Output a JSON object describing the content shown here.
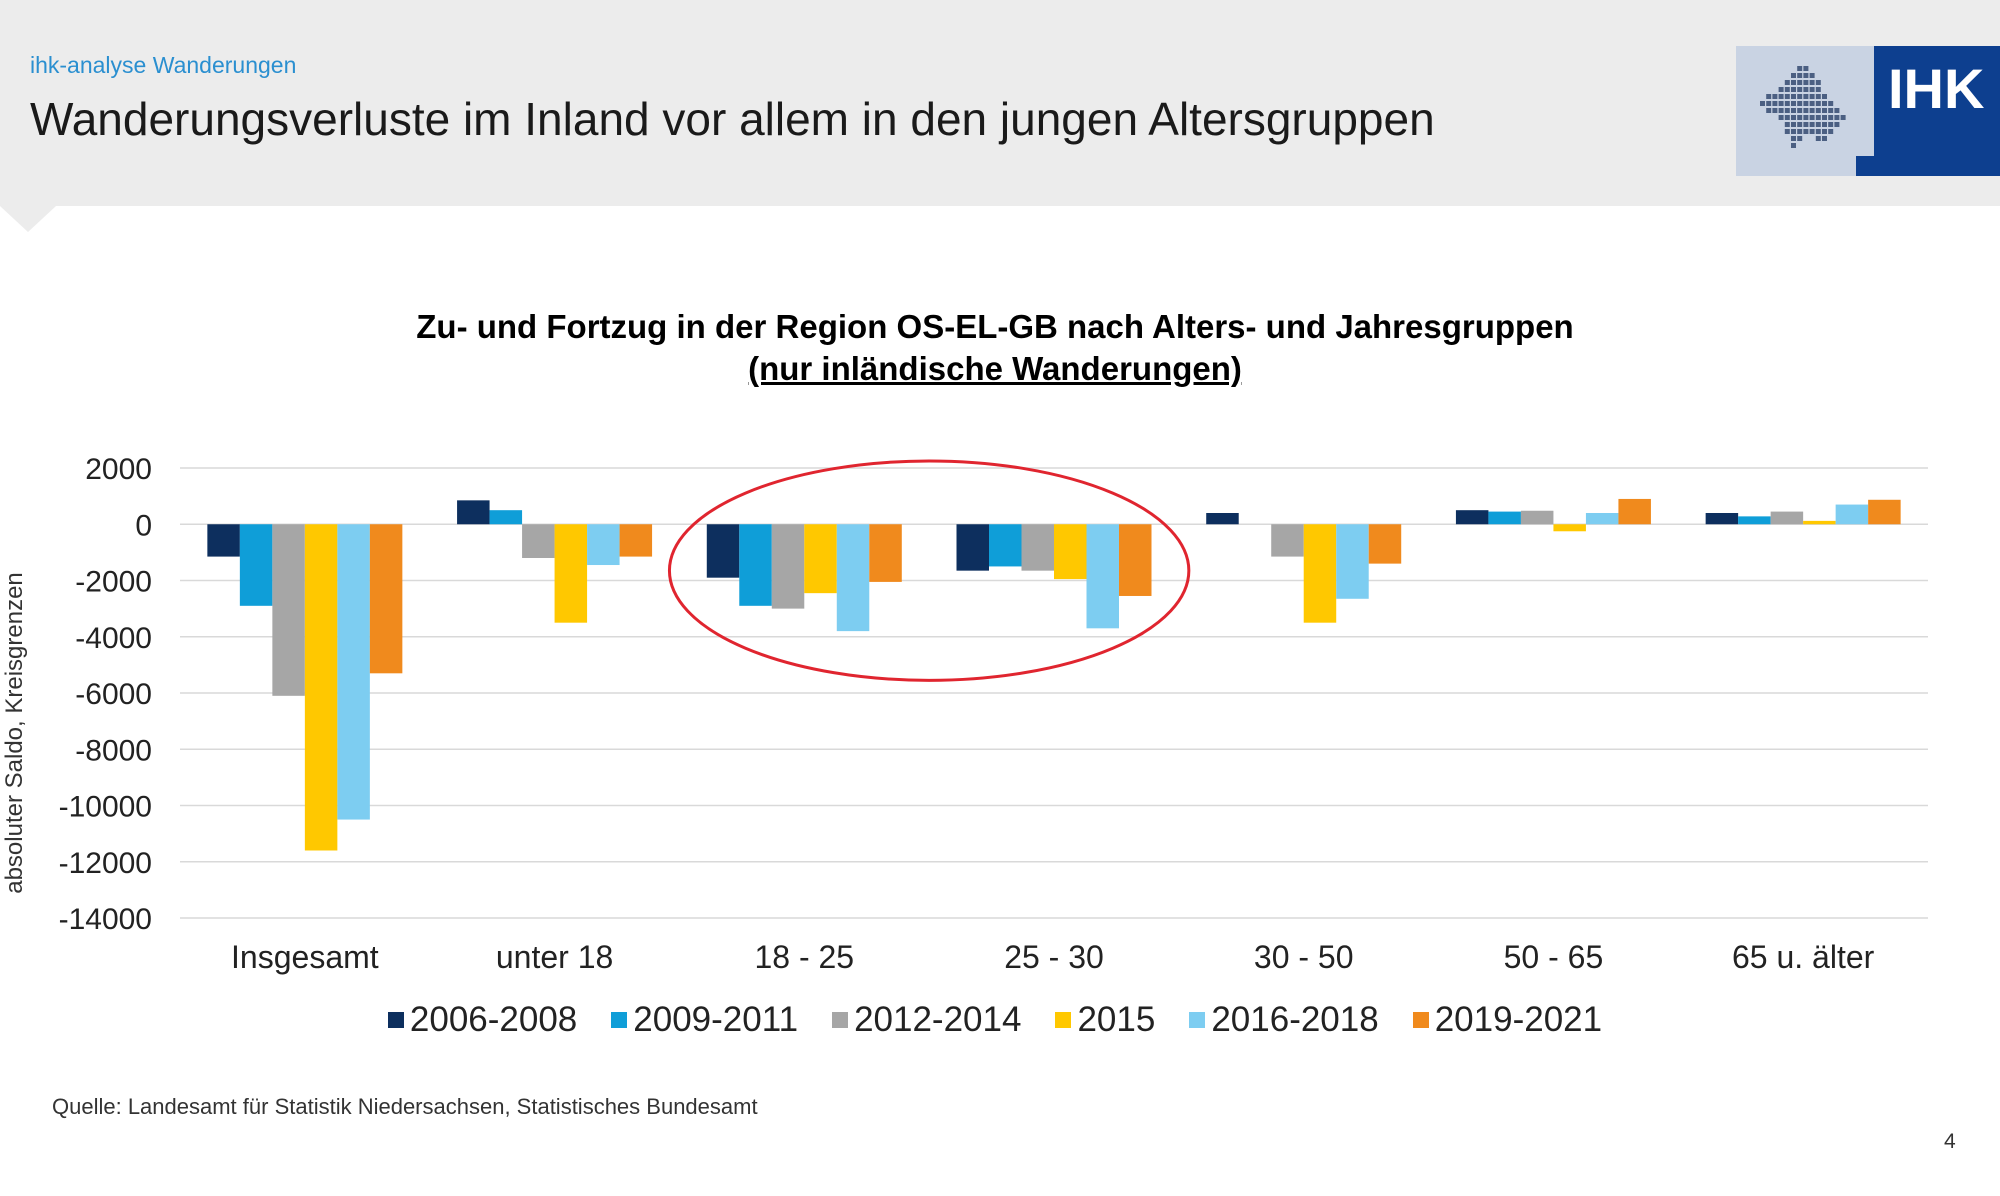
{
  "header": {
    "kicker": "ihk-analyse Wanderungen",
    "title": "Wanderungsverluste im Inland vor allem in den jungen Altersgruppen",
    "logo_text": "IHK"
  },
  "chart_data": {
    "type": "bar",
    "title": "Zu- und Fortzug in der Region OS-EL-GB nach Alters- und Jahresgruppen",
    "subtitle": "(nur inländische Wanderungen)",
    "ylabel": "absoluter Saldo, Kreisgrenzen",
    "ylim": [
      -14000,
      2000
    ],
    "yticks": [
      2000,
      0,
      -2000,
      -4000,
      -6000,
      -8000,
      -10000,
      -12000,
      -14000
    ],
    "grid": true,
    "legend_position": "bottom",
    "categories": [
      "Insgesamt",
      "unter 18",
      "18 - 25",
      "25 - 30",
      "30 - 50",
      "50 - 65",
      "65 u. älter"
    ],
    "series": [
      {
        "name": "2006-2008",
        "color": "#0d2f5e",
        "values": [
          -1150,
          850,
          -1900,
          -1650,
          400,
          500,
          400
        ]
      },
      {
        "name": "2009-2011",
        "color": "#0f9ed8",
        "values": [
          -2900,
          500,
          -2900,
          -1500,
          0,
          450,
          280
        ]
      },
      {
        "name": "2012-2014",
        "color": "#a6a6a6",
        "values": [
          -6100,
          -1200,
          -3000,
          -1650,
          -1150,
          480,
          450
        ]
      },
      {
        "name": "2015",
        "color": "#ffc800",
        "values": [
          -11600,
          -3500,
          -2450,
          -1950,
          -3500,
          -250,
          120
        ]
      },
      {
        "name": "2016-2018",
        "color": "#7dcdf1",
        "values": [
          -10500,
          -1450,
          -3800,
          -3700,
          -2650,
          400,
          700
        ]
      },
      {
        "name": "2019-2021",
        "color": "#f08a1d",
        "values": [
          -5300,
          -1150,
          -2050,
          -2550,
          -1400,
          900,
          870
        ]
      }
    ],
    "highlight": {
      "shape": "ellipse",
      "color": "#e0252f",
      "categories": [
        "18 - 25",
        "25 - 30"
      ]
    }
  },
  "footer": {
    "source": "Quelle: Landesamt für Statistik Niedersachsen, Statistisches Bundesamt",
    "page_number": "4"
  }
}
